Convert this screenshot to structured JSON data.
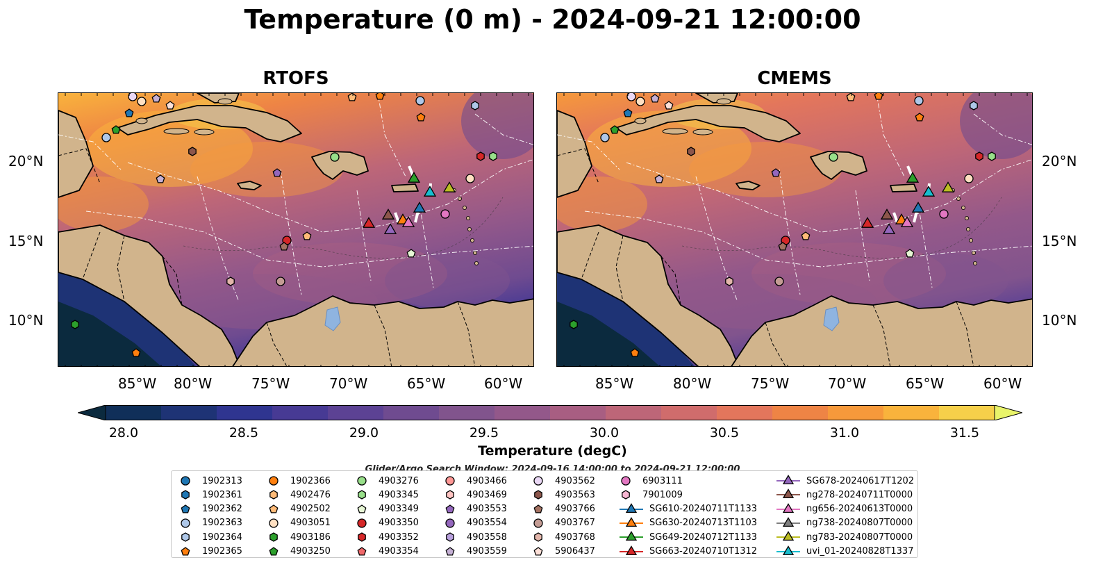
{
  "title": "Temperature (0 m) - 2024-09-21 12:00:00",
  "panels": [
    {
      "title": "RTOFS",
      "id": "rtofs"
    },
    {
      "title": "CMEMS",
      "id": "cmems"
    }
  ],
  "lat_ticks": [
    "20°N",
    "15°N",
    "10°N"
  ],
  "lon_ticks": [
    "85°W",
    "80°W",
    "75°W",
    "70°W",
    "65°W",
    "60°W"
  ],
  "colorbar": {
    "label": "Temperature (degC)",
    "ticks": [
      "28.0",
      "28.5",
      "29.0",
      "29.5",
      "30.0",
      "30.5",
      "31.0",
      "31.5"
    ],
    "range": [
      28.0,
      31.5
    ],
    "extend": "both",
    "colors": [
      "#0b2a3e",
      "#102f59",
      "#1e3375",
      "#2f3590",
      "#473a94",
      "#5c4294",
      "#6f4b90",
      "#81548d",
      "#93588a",
      "#a85e82",
      "#bd6678",
      "#d06c6c",
      "#e3765c",
      "#ee8445",
      "#f6993b",
      "#f9b33c",
      "#f6d04a",
      "#e9f46a"
    ]
  },
  "land_color": "#d1b48c",
  "search_window": "Glider/Argo Search Window: 2024-09-16 14:00:00 to 2024-09-21 12:00:00",
  "legend": {
    "argo": [
      {
        "id": "1902313",
        "color": "#1f77b4",
        "shape": "circle"
      },
      {
        "id": "1902361",
        "color": "#1f77b4",
        "shape": "hexagon"
      },
      {
        "id": "1902362",
        "color": "#1f77b4",
        "shape": "pentagon"
      },
      {
        "id": "1902363",
        "color": "#aec7e8",
        "shape": "circle"
      },
      {
        "id": "1902364",
        "color": "#aec7e8",
        "shape": "hexagon"
      },
      {
        "id": "1902365",
        "color": "#ff7f0e",
        "shape": "pentagon"
      },
      {
        "id": "1902366",
        "color": "#ff7f0e",
        "shape": "circle"
      },
      {
        "id": "4902476",
        "color": "#ffbb78",
        "shape": "hexagon"
      },
      {
        "id": "4902502",
        "color": "#ffbb78",
        "shape": "pentagon"
      },
      {
        "id": "4903051",
        "color": "#ffe0c2",
        "shape": "circle"
      },
      {
        "id": "4903186",
        "color": "#2ca02c",
        "shape": "hexagon"
      },
      {
        "id": "4903250",
        "color": "#2ca02c",
        "shape": "pentagon"
      },
      {
        "id": "4903276",
        "color": "#98df8a",
        "shape": "circle"
      },
      {
        "id": "4903345",
        "color": "#98df8a",
        "shape": "hexagon"
      },
      {
        "id": "4903349",
        "color": "#e7f7d5",
        "shape": "pentagon"
      },
      {
        "id": "4903350",
        "color": "#d62728",
        "shape": "circle"
      },
      {
        "id": "4903352",
        "color": "#d62728",
        "shape": "hexagon"
      },
      {
        "id": "4903354",
        "color": "#f0686a",
        "shape": "pentagon"
      },
      {
        "id": "4903466",
        "color": "#ff9896",
        "shape": "circle"
      },
      {
        "id": "4903469",
        "color": "#ffc5c3",
        "shape": "hexagon"
      },
      {
        "id": "4903553",
        "color": "#9467bd",
        "shape": "pentagon"
      },
      {
        "id": "4903554",
        "color": "#9467bd",
        "shape": "circle"
      },
      {
        "id": "4903558",
        "color": "#b8a0dd",
        "shape": "hexagon"
      },
      {
        "id": "4903559",
        "color": "#c5b0d5",
        "shape": "pentagon"
      },
      {
        "id": "4903562",
        "color": "#ead8f5",
        "shape": "circle"
      },
      {
        "id": "4903563",
        "color": "#8c564b",
        "shape": "hexagon"
      },
      {
        "id": "4903766",
        "color": "#a47262",
        "shape": "pentagon"
      },
      {
        "id": "4903767",
        "color": "#c49c94",
        "shape": "circle"
      },
      {
        "id": "4903768",
        "color": "#e3b6ab",
        "shape": "hexagon"
      },
      {
        "id": "5906437",
        "color": "#fde0d8",
        "shape": "pentagon"
      },
      {
        "id": "6903111",
        "color": "#e377c2",
        "shape": "circle"
      },
      {
        "id": "7901009",
        "color": "#f7b6d2",
        "shape": "hexagon"
      }
    ],
    "gliders": [
      {
        "id": "SG610-20240711T1133",
        "color": "#1f77b4"
      },
      {
        "id": "SG630-20240713T1103",
        "color": "#ff7f0e"
      },
      {
        "id": "SG649-20240712T1133",
        "color": "#2ca02c"
      },
      {
        "id": "SG663-20240710T1312",
        "color": "#d62728"
      },
      {
        "id": "SG678-20240617T1202",
        "color": "#9467bd"
      },
      {
        "id": "ng278-20240711T0000",
        "color": "#8c564b"
      },
      {
        "id": "ng656-20240613T0000",
        "color": "#e377c2"
      },
      {
        "id": "ng738-20240807T0000",
        "color": "#7f7f7f"
      },
      {
        "id": "ng783-20240807T0000",
        "color": "#bcbd22"
      },
      {
        "id": "uvi_01-20240828T1337",
        "color": "#17becf"
      }
    ]
  }
}
